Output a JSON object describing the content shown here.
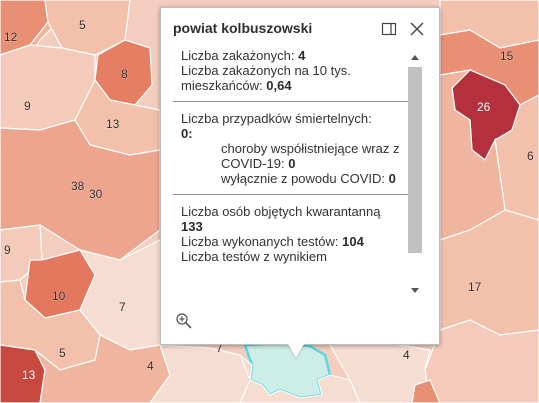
{
  "map": {
    "region_labels": [
      {
        "id": "label-12",
        "text": "12"
      },
      {
        "id": "label-5",
        "text": "5"
      },
      {
        "id": "label-8",
        "text": "8"
      },
      {
        "id": "label-9-top",
        "text": "9"
      },
      {
        "id": "label-13-top",
        "text": "13"
      },
      {
        "id": "label-38",
        "text": "38"
      },
      {
        "id": "label-30",
        "text": "30"
      },
      {
        "id": "label-9-left",
        "text": "9"
      },
      {
        "id": "label-10",
        "text": "10"
      },
      {
        "id": "label-7",
        "text": "7"
      },
      {
        "id": "label-5-bottom",
        "text": "5"
      },
      {
        "id": "label-13-bottom",
        "text": "13"
      },
      {
        "id": "label-4-bottom",
        "text": "4"
      },
      {
        "id": "label-15",
        "text": "15"
      },
      {
        "id": "label-26",
        "text": "26"
      },
      {
        "id": "label-6",
        "text": "6"
      },
      {
        "id": "label-17",
        "text": "17"
      },
      {
        "id": "label-4-right",
        "text": "4"
      },
      {
        "id": "label-7-small",
        "text": "7"
      }
    ],
    "colors": {
      "lightest": "#f6ddd2",
      "light": "#f2c2ae",
      "medium_light": "#eda68d",
      "medium": "#e88a6e",
      "strong": "#e06a53",
      "darker": "#c84a3e",
      "darkest": "#b3303c",
      "selected_fill": "#cdeee6",
      "selected_outline": "#5ad8e6",
      "boundary": "#ffffff"
    }
  },
  "popup": {
    "title": "powiat kolbuszowski",
    "dock_icon": "dock-panel-icon",
    "close_icon": "close-icon",
    "zoom_icon": "zoom-to-icon",
    "cases_label": "Liczba zakażonych: ",
    "cases_value": "4",
    "cases_per10k_label": "Liczba zakażonych na 10 tys. mieszkańców: ",
    "cases_per10k_value": "0,64",
    "deaths_label": "Liczba przypadków śmiertelnych: ",
    "deaths_value": "0:",
    "comorb_label": "choroby współistniejące wraz z COVID-19: ",
    "comorb_value": "0",
    "covid_only_label": "wyłącznie z powodu COVID: ",
    "covid_only_value": "0",
    "quarantine_label": "Liczba osób objętych kwarantanną ",
    "quarantine_value": "133",
    "tests_label": "Liczba wykonanych testów: ",
    "tests_value": "104",
    "tests_positive_label": "Liczba testów z wynikiem"
  }
}
